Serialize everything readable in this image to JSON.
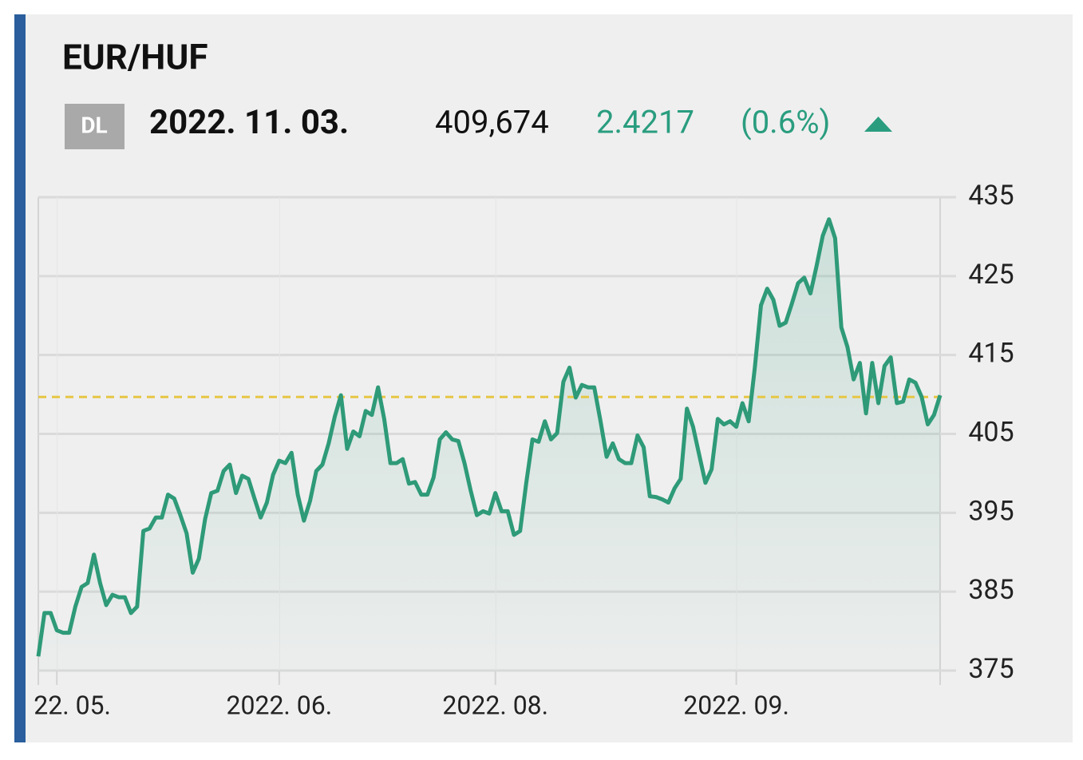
{
  "chart_data": {
    "type": "line",
    "title": "EUR/HUF",
    "badge": "DL",
    "date": "2022. 11. 03.",
    "current": {
      "value": 409.674,
      "label": "409,674"
    },
    "change": 2.4217,
    "change_pct": {
      "value": 0.6,
      "label": "(0.6%)"
    },
    "color": "#2e9a78",
    "reference_color": "#e6c644",
    "values": [
      376.8,
      382.3,
      382.3,
      380.1,
      379.8,
      379.8,
      383.1,
      385.6,
      386.1,
      389.7,
      386.1,
      383.3,
      384.6,
      384.3,
      384.3,
      382.3,
      383.1,
      392.7,
      393.0,
      394.4,
      394.4,
      397.3,
      396.8,
      394.7,
      392.4,
      387.4,
      389.2,
      394.2,
      397.5,
      397.8,
      400.3,
      401.1,
      397.5,
      399.7,
      399.3,
      396.8,
      394.4,
      396.3,
      399.8,
      401.6,
      401.3,
      402.6,
      397.3,
      394.0,
      396.5,
      400.3,
      401.1,
      403.8,
      407.2,
      409.9,
      403.1,
      405.3,
      404.7,
      407.9,
      407.4,
      410.9,
      406.9,
      401.3,
      401.3,
      401.8,
      398.7,
      398.9,
      397.3,
      397.3,
      399.5,
      404.3,
      405.2,
      404.3,
      404.1,
      401.3,
      397.8,
      394.7,
      395.2,
      394.9,
      397.5,
      395.2,
      395.2,
      392.2,
      392.7,
      398.8,
      404.3,
      404.0,
      406.6,
      404.3,
      405.1,
      411.6,
      413.4,
      409.6,
      411.2,
      410.9,
      410.9,
      406.7,
      402.1,
      403.8,
      401.8,
      401.3,
      401.3,
      404.8,
      403.3,
      397.1,
      397.0,
      396.7,
      396.3,
      398.1,
      399.3,
      408.2,
      405.9,
      402.3,
      398.8,
      400.5,
      406.9,
      406.2,
      406.6,
      405.9,
      408.9,
      406.6,
      413.4,
      421.3,
      423.4,
      422.0,
      418.7,
      419.1,
      421.5,
      424.1,
      424.8,
      422.8,
      426.3,
      430.1,
      432.2,
      429.8,
      418.5,
      416.0,
      411.9,
      414.0,
      407.6,
      414.0,
      408.9,
      413.6,
      414.7,
      408.9,
      409.1,
      411.9,
      411.5,
      409.7,
      406.2,
      407.4,
      409.9
    ],
    "xticks": [
      {
        "value": 3,
        "label": "22. 05."
      },
      {
        "value": 39,
        "label": "2022. 06."
      },
      {
        "value": 74,
        "label": "2022. 08."
      },
      {
        "value": 113,
        "label": "2022. 09."
      }
    ],
    "ylim": [
      375,
      435
    ],
    "yticks": [
      375,
      385,
      395,
      405,
      415,
      425,
      435
    ],
    "grid": true
  }
}
